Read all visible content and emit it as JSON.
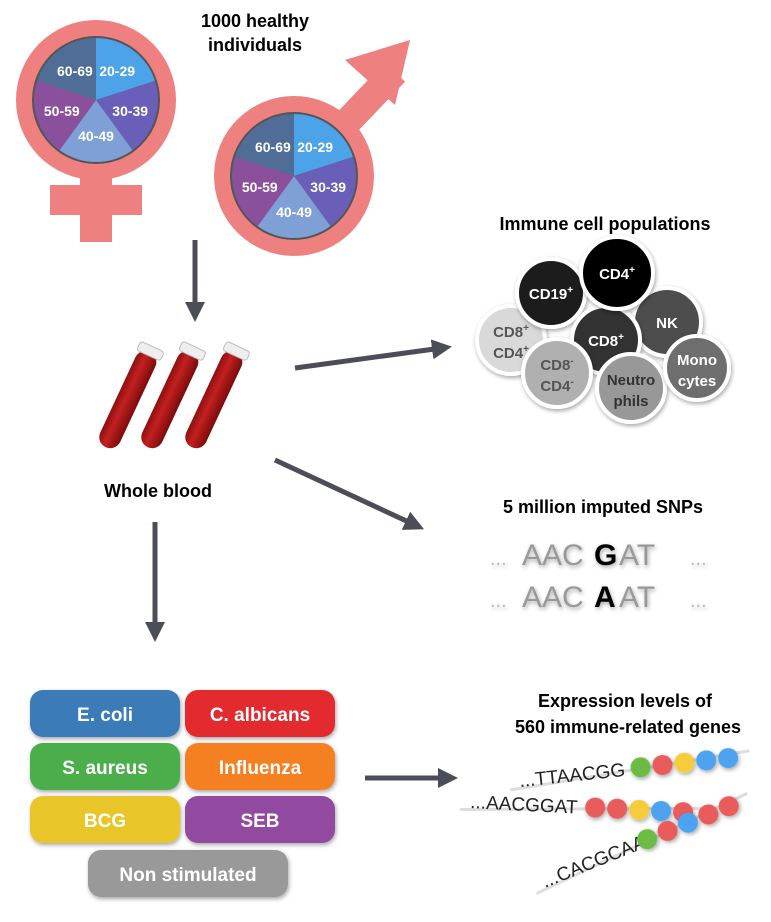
{
  "cohort": {
    "title_line1": "1000 healthy",
    "title_line2": "individuals",
    "age_groups": [
      "20-29",
      "30-39",
      "40-49",
      "50-59",
      "60-69"
    ],
    "age_colors": [
      "#4da3e8",
      "#6a5fb8",
      "#7ea0d6",
      "#8b509c",
      "#4f6d97"
    ],
    "symbol_color": "#ee8080"
  },
  "blood": {
    "label": "Whole blood"
  },
  "immune": {
    "title": "Immune cell populations",
    "cells": [
      {
        "label1": "CD19",
        "sup1": "+",
        "label2": "",
        "sup2": "",
        "fill": "#1e1e1e",
        "text": "#ffffff"
      },
      {
        "label1": "CD4",
        "sup1": "+",
        "label2": "",
        "sup2": "",
        "fill": "#000000",
        "text": "#ffffff"
      },
      {
        "label1": "NK",
        "sup1": "",
        "label2": "",
        "sup2": "",
        "fill": "#4e4e4e",
        "text": "#ffffff"
      },
      {
        "label1": "CD8",
        "sup1": "+",
        "label2": "CD4",
        "sup2": "+",
        "fill": "#d9d9d9",
        "text": "#555555"
      },
      {
        "label1": "CD8",
        "sup1": "+",
        "label2": "",
        "sup2": "",
        "fill": "#333333",
        "text": "#ffffff"
      },
      {
        "label1": "CD8",
        "sup1": "-",
        "label2": "CD4",
        "sup2": "-",
        "fill": "#b0b0b0",
        "text": "#555555"
      },
      {
        "label1": "Neutro",
        "sup1": "",
        "label2": "phils",
        "sup2": "",
        "fill": "#989898",
        "text": "#333333"
      },
      {
        "label1": "Mono",
        "sup1": "",
        "label2": "cytes",
        "sup2": "",
        "fill": "#6e6e6e",
        "text": "#ffffff"
      }
    ]
  },
  "snps": {
    "title": "5 million imputed SNPs",
    "seq1": {
      "pre": "AAC",
      "variant": "G",
      "post": "AT"
    },
    "seq2": {
      "pre": "AAC",
      "variant": "A",
      "post": "AT"
    },
    "ellipsis": "..."
  },
  "stimuli": {
    "items": [
      {
        "label": "E. coli",
        "color": "#3b7bb8"
      },
      {
        "label": "C. albicans",
        "color": "#e3292f"
      },
      {
        "label": "S. aureus",
        "color": "#4cae4c"
      },
      {
        "label": "Influenza",
        "color": "#f58024"
      },
      {
        "label": "BCG",
        "color": "#e8c62a"
      },
      {
        "label": "SEB",
        "color": "#9248a0"
      },
      {
        "label": "Non stimulated",
        "color": "#999999"
      }
    ]
  },
  "expression": {
    "title_line1": "Expression levels of",
    "title_line2": "560 immune-related genes",
    "sequences": [
      {
        "text": "...TTAACGG",
        "beads": [
          "#6cbb45",
          "#e85c5c",
          "#f5cc3a",
          "#4da3f0",
          "#4da3f0"
        ]
      },
      {
        "text": "...AACGGAT",
        "beads": [
          "#e85c5c",
          "#e85c5c",
          "#f5cc3a",
          "#4da3f0",
          "#e85c5c"
        ]
      },
      {
        "text": "...CACGCAA",
        "beads": [
          "#6cbb45",
          "#e85c5c",
          "#4da3f0",
          "#e85c5c",
          "#e85c5c"
        ]
      }
    ]
  },
  "arrow_color": "#4a4f57"
}
